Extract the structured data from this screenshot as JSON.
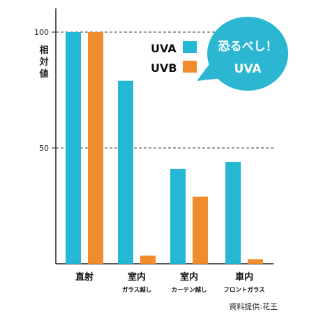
{
  "chart_data": {
    "type": "bar",
    "ylabel": "相対値",
    "ylim": [
      0,
      100
    ],
    "yticks": [
      100,
      50
    ],
    "grid": "dashed horizontal at ticks",
    "categories": [
      {
        "label": "直射",
        "sub": ""
      },
      {
        "label": "室内",
        "sub": "ガラス越し"
      },
      {
        "label": "室内",
        "sub": "カーテン越し"
      },
      {
        "label": "車内",
        "sub": "フロントガラス"
      }
    ],
    "series": [
      {
        "name": "UVA",
        "color": "#24b8d4",
        "values": [
          100,
          79,
          41,
          44
        ]
      },
      {
        "name": "UVB",
        "color": "#f08c2c",
        "values": [
          100,
          3.5,
          29,
          2
        ]
      }
    ],
    "legend_position": "top-right",
    "callout": {
      "lines": [
        "恐るべし！",
        "UVA"
      ],
      "color": "#2bb6d2"
    },
    "source": "資料提供:花王"
  }
}
